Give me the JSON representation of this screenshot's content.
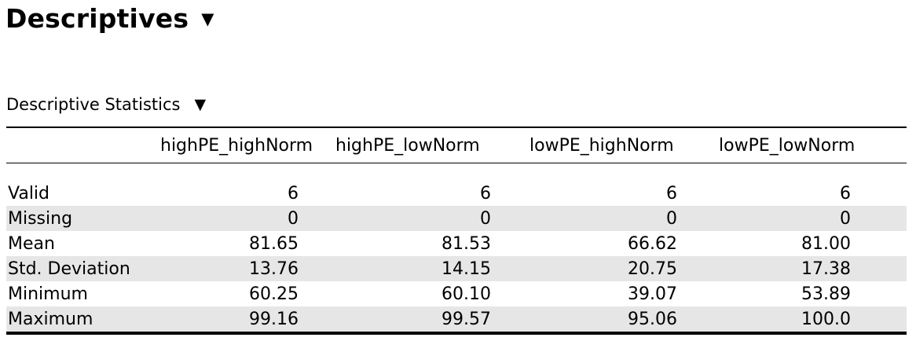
{
  "analysis": {
    "title": "Descriptives",
    "toggle_icon": "▼"
  },
  "table": {
    "title": "Descriptive Statistics",
    "toggle_icon": "▼",
    "columns": [
      "highPE_highNorm",
      "highPE_lowNorm",
      "lowPE_highNorm",
      "lowPE_lowNorm"
    ],
    "rows": [
      {
        "label": "Valid",
        "values": [
          "6",
          "6",
          "6",
          "6"
        ]
      },
      {
        "label": "Missing",
        "values": [
          "0",
          "0",
          "0",
          "0"
        ]
      },
      {
        "label": "Mean",
        "values": [
          "81.65",
          "81.53",
          "66.62",
          "81.00"
        ]
      },
      {
        "label": "Std. Deviation",
        "values": [
          "13.76",
          "14.15",
          "20.75",
          "17.38"
        ]
      },
      {
        "label": "Minimum",
        "values": [
          "60.25",
          "60.10",
          "39.07",
          "53.89"
        ]
      },
      {
        "label": "Maximum",
        "values": [
          "99.16",
          "99.57",
          "95.06",
          "100.0"
        ]
      }
    ]
  },
  "colors": {
    "row_shade": "#e6e6e6",
    "rule": "#000000",
    "text": "#000000",
    "background": "#ffffff"
  }
}
